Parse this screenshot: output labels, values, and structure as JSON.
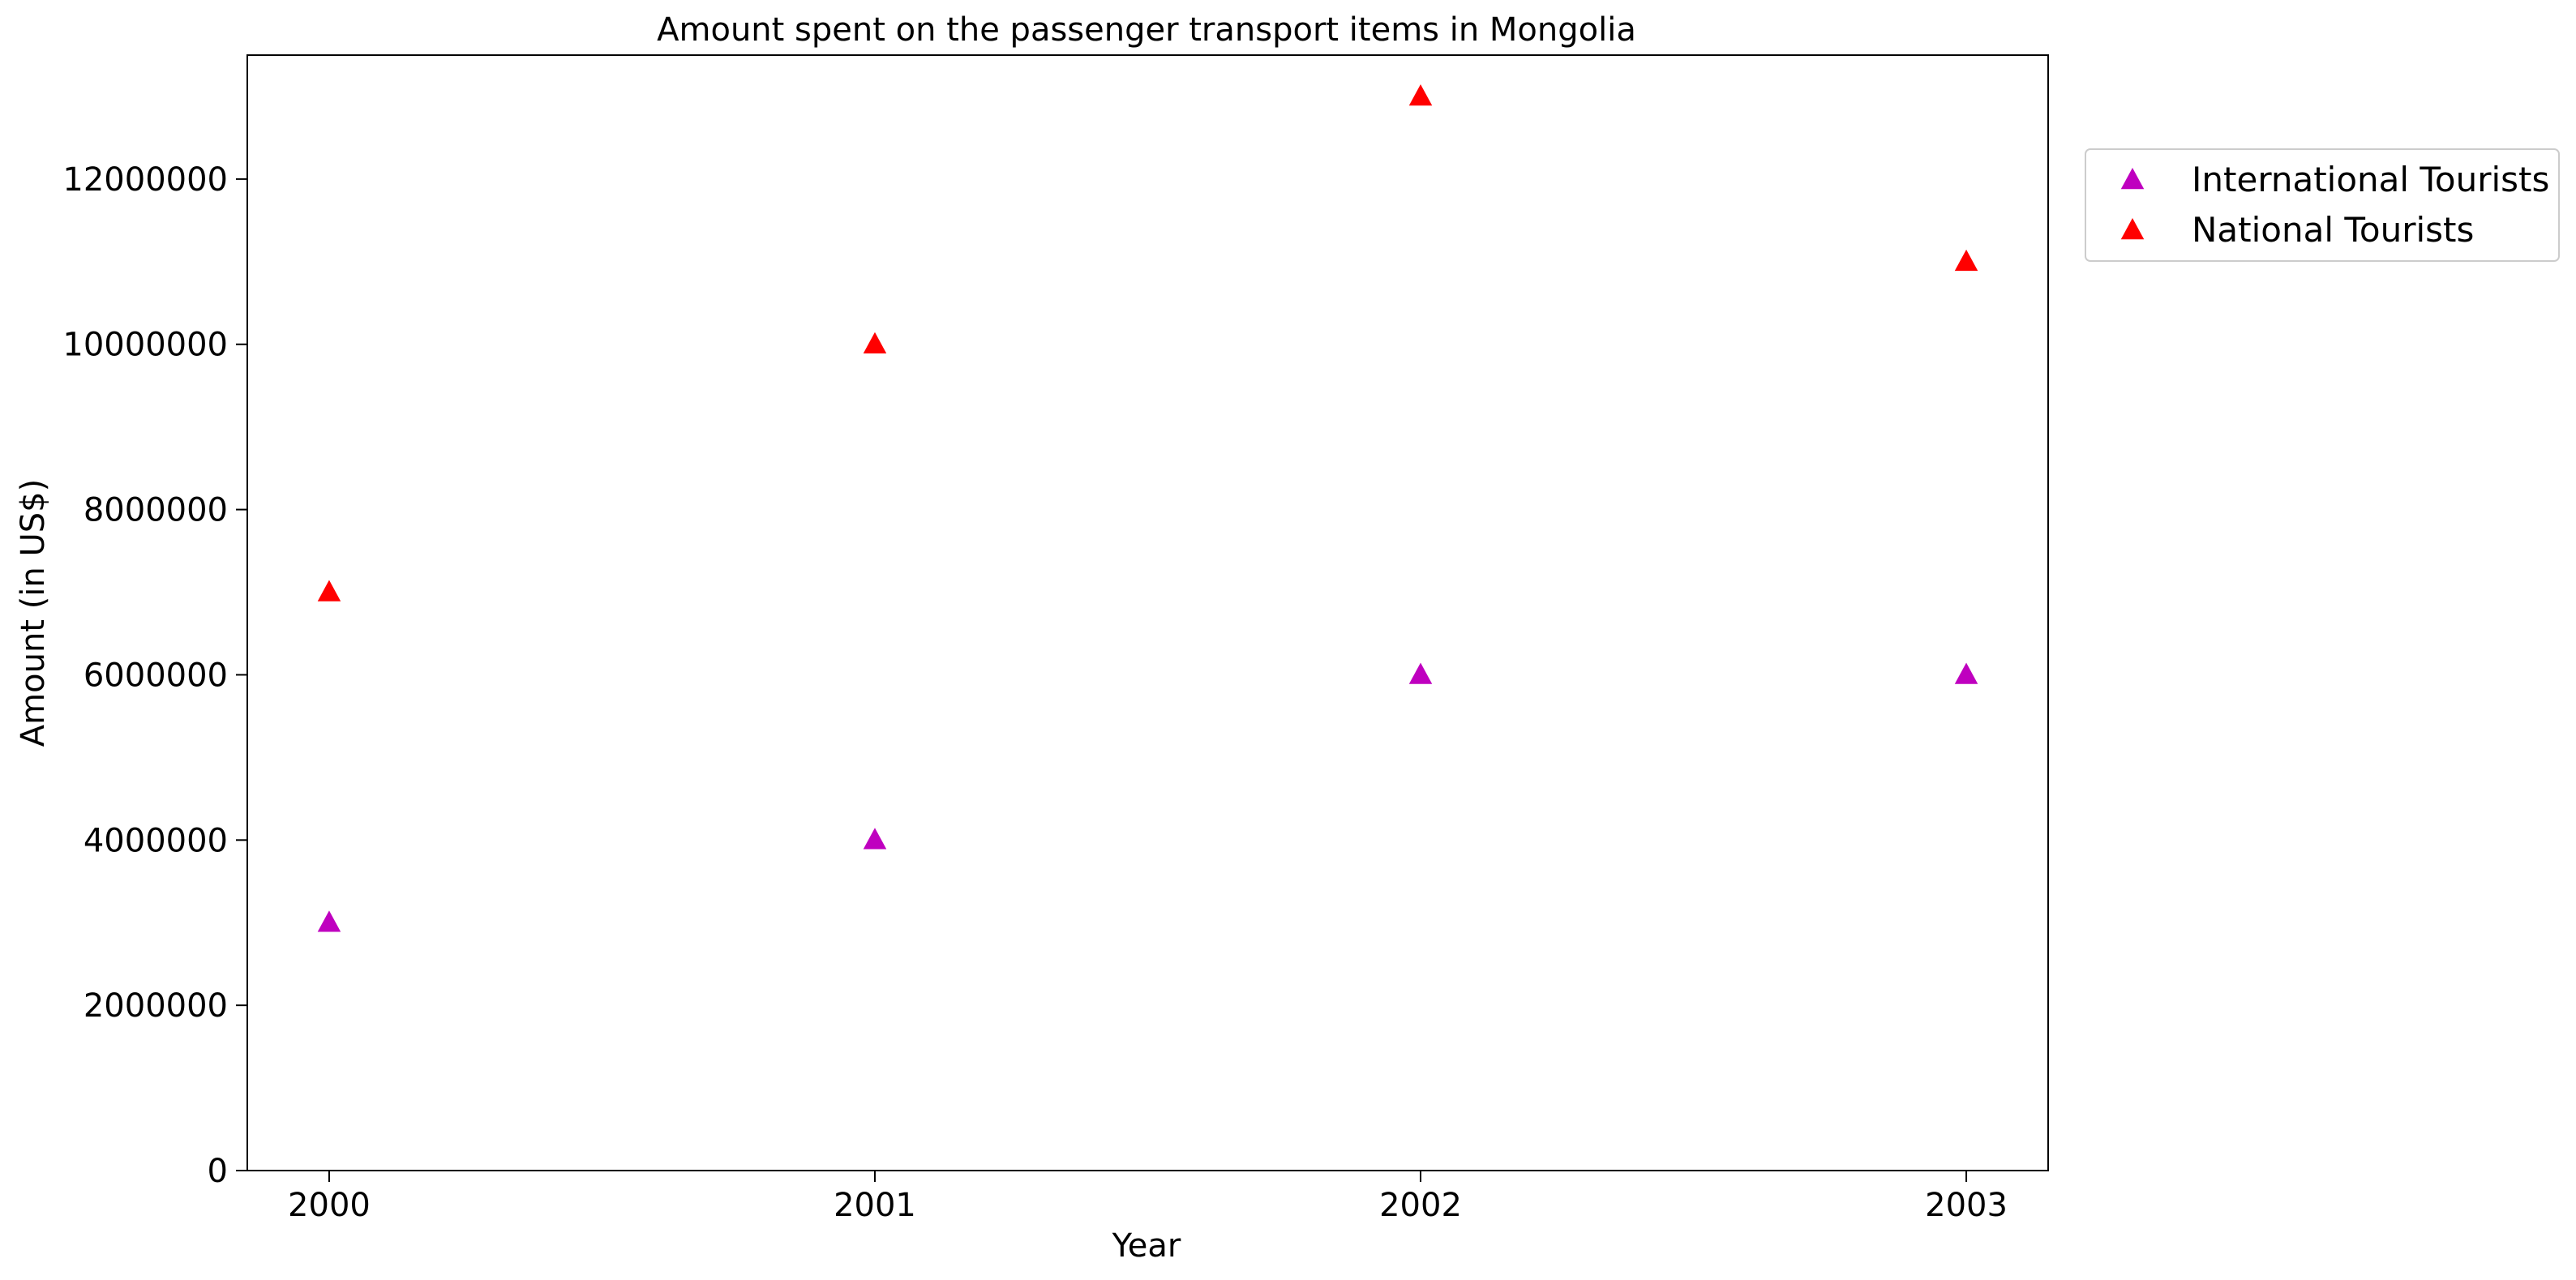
{
  "chart_data": {
    "type": "scatter",
    "title": "Amount spent on the passenger transport items in Mongolia",
    "xlabel": "Year",
    "ylabel": "Amount (in US$)",
    "x": [
      2000,
      2001,
      2002,
      2003
    ],
    "x_tick_labels": [
      "2000",
      "2001",
      "2002",
      "2003"
    ],
    "y_ticks": [
      0,
      2000000,
      4000000,
      6000000,
      8000000,
      10000000,
      12000000
    ],
    "y_tick_labels": [
      "0",
      "2000000",
      "4000000",
      "6000000",
      "8000000",
      "10000000",
      "12000000"
    ],
    "ylim": [
      0,
      13500000
    ],
    "xlim": [
      1999.85,
      2003.15
    ],
    "marker": "triangle",
    "grid": false,
    "legend_position": "outside-top-right",
    "series": [
      {
        "name": "International Tourists",
        "color": "#bf00bf",
        "values": [
          3000000,
          4000000,
          6000000,
          6000000
        ]
      },
      {
        "name": "National Tourists",
        "color": "#ff0000",
        "values": [
          7000000,
          10000000,
          13000000,
          11000000
        ]
      }
    ]
  }
}
